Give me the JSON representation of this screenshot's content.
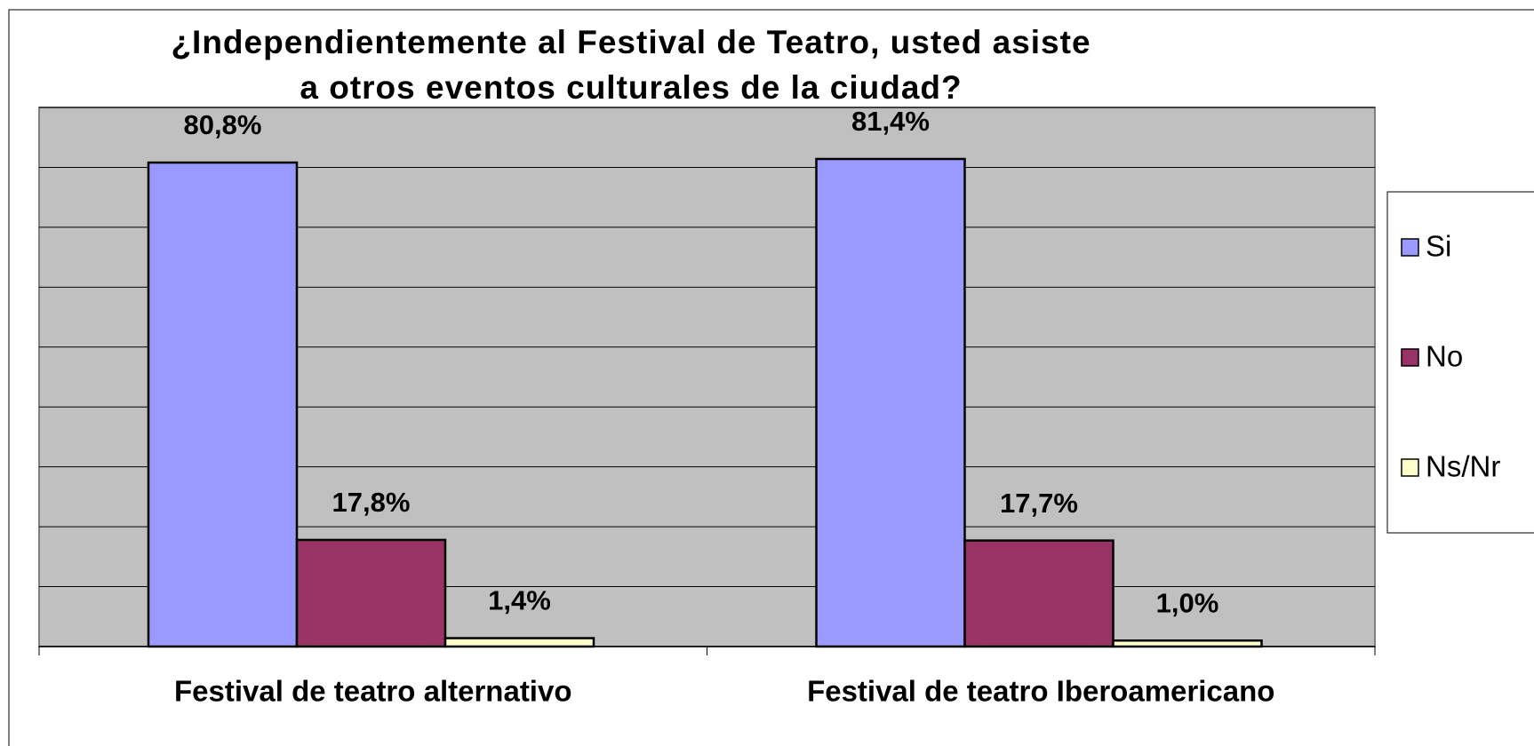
{
  "chart_data": {
    "type": "bar",
    "title": [
      "¿Independientemente al Festival de Teatro, usted asiste",
      "a otros eventos culturales de la ciudad?"
    ],
    "categories": [
      "Festival de teatro alternativo",
      "Festival de teatro Iberoamericano"
    ],
    "series": [
      {
        "name": "Si",
        "color": "#9999ff",
        "values": [
          80.8,
          81.4
        ],
        "value_labels": [
          "80,8%",
          "81,4%"
        ]
      },
      {
        "name": "No",
        "color": "#993366",
        "values": [
          17.8,
          17.7
        ],
        "value_labels": [
          "17,8%",
          "17,7%"
        ]
      },
      {
        "name": "Ns/Nr",
        "color": "#ffffcc",
        "values": [
          1.4,
          1.0
        ],
        "value_labels": [
          "1,4%",
          "1,0%"
        ]
      }
    ],
    "ylim": [
      0,
      90
    ],
    "yticks": [
      0,
      10,
      20,
      30,
      40,
      50,
      60,
      70,
      80,
      90
    ],
    "grid": true,
    "legend": "right"
  }
}
